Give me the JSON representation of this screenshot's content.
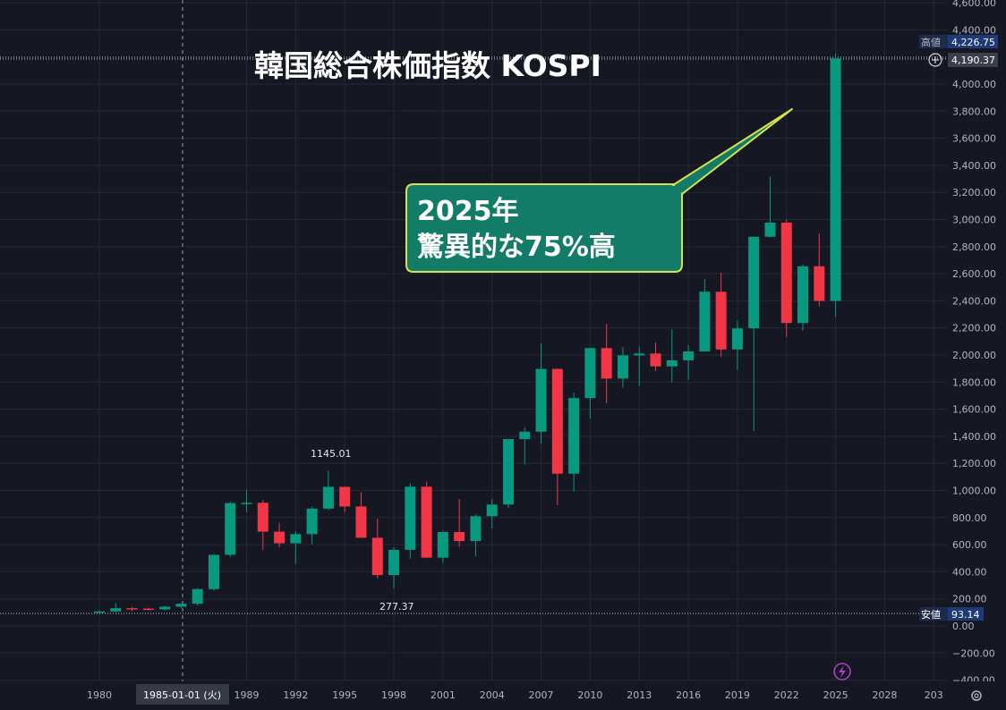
{
  "chart_data": {
    "type": "candlestick",
    "title": "韓国総合株価指数 KOSPI",
    "callout": {
      "line1": "2025年",
      "line2": "驚異的な75%高"
    },
    "up_color": "#089981",
    "down_color": "#f23645",
    "ylim": [
      -400,
      4600
    ],
    "x_ticks": [
      "1980",
      "1985-01-01 (火)",
      "1989",
      "1992",
      "1995",
      "1998",
      "2001",
      "2004",
      "2007",
      "2010",
      "2013",
      "2016",
      "2019",
      "2022",
      "2025",
      "2028",
      "203"
    ],
    "y_ticks": [
      "4,600.00",
      "4,400.00",
      "4,000.00",
      "3,800.00",
      "3,600.00",
      "3,400.00",
      "3,200.00",
      "3,000.00",
      "2,800.00",
      "2,600.00",
      "2,400.00",
      "2,200.00",
      "2,000.00",
      "1,800.00",
      "1,600.00",
      "1,400.00",
      "1,200.00",
      "1,000.00",
      "800.00",
      "600.00",
      "400.00",
      "200.00",
      "0.00",
      "−200.00",
      "−400.00"
    ],
    "high_marker": {
      "label": "高値",
      "value": "4,226.75"
    },
    "current_marker": {
      "value": "4,190.37"
    },
    "low_marker": {
      "label": "安値",
      "value": "93.14"
    },
    "annotations": {
      "peak_1994": "1145.01",
      "low_1998": "277.37"
    },
    "candles": [
      {
        "year": 1980,
        "o": 100,
        "h": 115,
        "l": 93,
        "c": 107
      },
      {
        "year": 1981,
        "o": 107,
        "h": 170,
        "l": 100,
        "c": 131
      },
      {
        "year": 1982,
        "o": 131,
        "h": 140,
        "l": 110,
        "c": 128
      },
      {
        "year": 1983,
        "o": 128,
        "h": 135,
        "l": 114,
        "c": 122
      },
      {
        "year": 1984,
        "o": 122,
        "h": 150,
        "l": 115,
        "c": 142
      },
      {
        "year": 1985,
        "o": 142,
        "h": 165,
        "l": 130,
        "c": 164
      },
      {
        "year": 1986,
        "o": 164,
        "h": 280,
        "l": 150,
        "c": 272
      },
      {
        "year": 1987,
        "o": 272,
        "h": 530,
        "l": 260,
        "c": 525
      },
      {
        "year": 1988,
        "o": 525,
        "h": 920,
        "l": 510,
        "c": 907
      },
      {
        "year": 1989,
        "o": 907,
        "h": 1007,
        "l": 840,
        "c": 909
      },
      {
        "year": 1990,
        "o": 909,
        "h": 930,
        "l": 560,
        "c": 696
      },
      {
        "year": 1991,
        "o": 696,
        "h": 760,
        "l": 580,
        "c": 610
      },
      {
        "year": 1992,
        "o": 610,
        "h": 700,
        "l": 460,
        "c": 678
      },
      {
        "year": 1993,
        "o": 678,
        "h": 880,
        "l": 600,
        "c": 866
      },
      {
        "year": 1994,
        "o": 866,
        "h": 1145,
        "l": 855,
        "c": 1027
      },
      {
        "year": 1995,
        "o": 1027,
        "h": 1016,
        "l": 840,
        "c": 882
      },
      {
        "year": 1996,
        "o": 882,
        "h": 986,
        "l": 651,
        "c": 651
      },
      {
        "year": 1997,
        "o": 651,
        "h": 792,
        "l": 350,
        "c": 376
      },
      {
        "year": 1998,
        "o": 376,
        "h": 580,
        "l": 277,
        "c": 562
      },
      {
        "year": 1999,
        "o": 562,
        "h": 1052,
        "l": 498,
        "c": 1028
      },
      {
        "year": 2000,
        "o": 1028,
        "h": 1066,
        "l": 500,
        "c": 504
      },
      {
        "year": 2001,
        "o": 504,
        "h": 704,
        "l": 468,
        "c": 693
      },
      {
        "year": 2002,
        "o": 693,
        "h": 937,
        "l": 584,
        "c": 627
      },
      {
        "year": 2003,
        "o": 627,
        "h": 822,
        "l": 515,
        "c": 810
      },
      {
        "year": 2004,
        "o": 810,
        "h": 936,
        "l": 719,
        "c": 896
      },
      {
        "year": 2005,
        "o": 896,
        "h": 1379,
        "l": 870,
        "c": 1379
      },
      {
        "year": 2006,
        "o": 1379,
        "h": 1464,
        "l": 1192,
        "c": 1434
      },
      {
        "year": 2007,
        "o": 1434,
        "h": 2085,
        "l": 1345,
        "c": 1897
      },
      {
        "year": 2008,
        "o": 1897,
        "h": 1902,
        "l": 892,
        "c": 1124
      },
      {
        "year": 2009,
        "o": 1124,
        "h": 1723,
        "l": 992,
        "c": 1682
      },
      {
        "year": 2010,
        "o": 1682,
        "h": 2052,
        "l": 1532,
        "c": 2051
      },
      {
        "year": 2011,
        "o": 2051,
        "h": 2231,
        "l": 1644,
        "c": 1826
      },
      {
        "year": 2012,
        "o": 1826,
        "h": 2057,
        "l": 1758,
        "c": 1997
      },
      {
        "year": 2013,
        "o": 1997,
        "h": 2063,
        "l": 1772,
        "c": 2011
      },
      {
        "year": 2014,
        "o": 2011,
        "h": 2093,
        "l": 1881,
        "c": 1916
      },
      {
        "year": 2015,
        "o": 1916,
        "h": 2189,
        "l": 1800,
        "c": 1961
      },
      {
        "year": 2016,
        "o": 1961,
        "h": 2073,
        "l": 1817,
        "c": 2026
      },
      {
        "year": 2017,
        "o": 2026,
        "h": 2561,
        "l": 2026,
        "c": 2467
      },
      {
        "year": 2018,
        "o": 2467,
        "h": 2607,
        "l": 1985,
        "c": 2041
      },
      {
        "year": 2019,
        "o": 2041,
        "h": 2252,
        "l": 1891,
        "c": 2197
      },
      {
        "year": 2020,
        "o": 2197,
        "h": 2873,
        "l": 1439,
        "c": 2873
      },
      {
        "year": 2021,
        "o": 2873,
        "h": 3316,
        "l": 2869,
        "c": 2977
      },
      {
        "year": 2022,
        "o": 2977,
        "h": 3000,
        "l": 2134,
        "c": 2236
      },
      {
        "year": 2023,
        "o": 2236,
        "h": 2668,
        "l": 2180,
        "c": 2655
      },
      {
        "year": 2024,
        "o": 2655,
        "h": 2896,
        "l": 2360,
        "c": 2399
      },
      {
        "year": 2025,
        "o": 2399,
        "h": 4226,
        "l": 2284,
        "c": 4190
      }
    ]
  }
}
